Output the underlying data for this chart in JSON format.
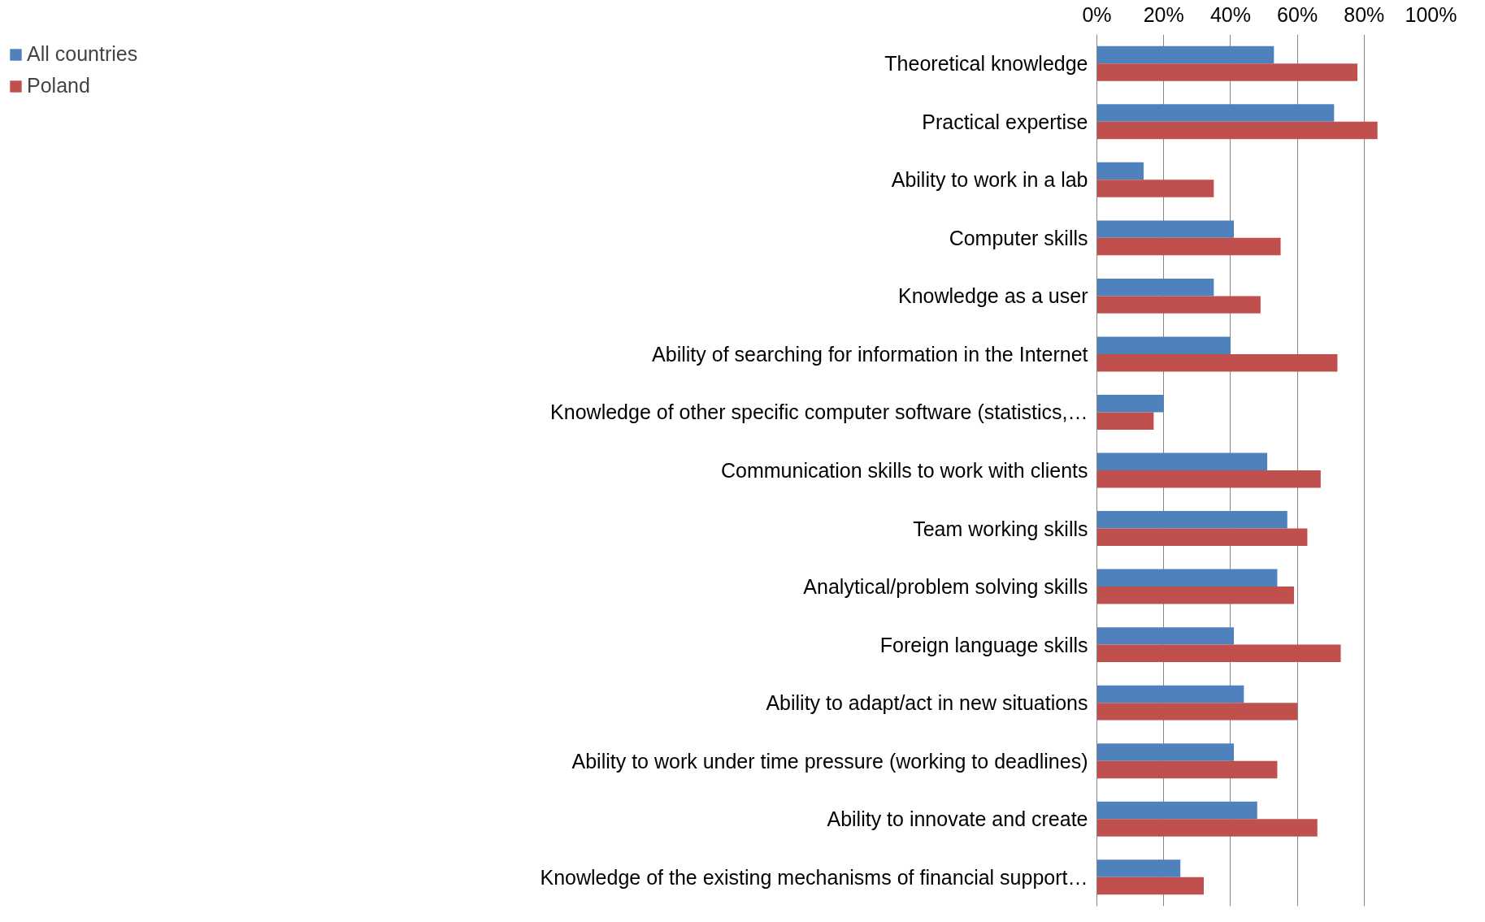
{
  "chart_data": {
    "type": "bar",
    "orientation": "horizontal",
    "categories": [
      "Theoretical knowledge",
      "Practical expertise",
      "Ability to work in a lab",
      "Computer skills",
      "Knowledge as a user",
      "Ability of searching for information in the Internet",
      "Knowledge of other specific computer software (statistics,…",
      "Communication skills to work with clients",
      "Team working skills",
      "Analytical/problem solving skills",
      "Foreign language skills",
      "Ability to adapt/act in new situations",
      "Ability to work under time pressure (working to deadlines)",
      "Ability to innovate and create",
      "Knowledge of the existing mechanisms of financial support…"
    ],
    "series": [
      {
        "name": "All countries",
        "color": "#4f81bd",
        "values": [
          53,
          71,
          14,
          41,
          35,
          40,
          20,
          51,
          57,
          54,
          41,
          44,
          41,
          48,
          25
        ]
      },
      {
        "name": "Poland",
        "color": "#c0504d",
        "values": [
          78,
          84,
          35,
          55,
          49,
          72,
          17,
          67,
          63,
          59,
          73,
          60,
          54,
          66,
          32
        ]
      }
    ],
    "xlim": [
      0,
      100
    ],
    "xticks": [
      {
        "value": 0,
        "label": "0%"
      },
      {
        "value": 20,
        "label": "20%"
      },
      {
        "value": 40,
        "label": "40%"
      },
      {
        "value": 60,
        "label": "60%"
      },
      {
        "value": 80,
        "label": "80%"
      },
      {
        "value": 100,
        "label": "100%"
      }
    ],
    "grid": "x",
    "legend": "top left"
  }
}
